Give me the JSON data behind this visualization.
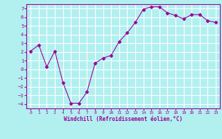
{
  "x": [
    0,
    1,
    2,
    3,
    4,
    5,
    6,
    7,
    8,
    9,
    10,
    11,
    12,
    13,
    14,
    15,
    16,
    17,
    18,
    19,
    20,
    21,
    22,
    23
  ],
  "y": [
    2.1,
    2.8,
    0.3,
    2.1,
    -1.5,
    -3.9,
    -3.9,
    -2.6,
    0.7,
    1.3,
    1.6,
    3.2,
    4.2,
    5.4,
    6.9,
    7.2,
    7.2,
    6.5,
    6.2,
    5.8,
    6.3,
    6.3,
    5.6,
    5.4
  ],
  "xlabel": "Windchill (Refroidissement éolien,°C)",
  "ylim": [
    -4.5,
    7.5
  ],
  "xlim": [
    -0.5,
    23.5
  ],
  "yticks": [
    -4,
    -3,
    -2,
    -1,
    0,
    1,
    2,
    3,
    4,
    5,
    6,
    7
  ],
  "xticks": [
    0,
    1,
    2,
    3,
    4,
    5,
    6,
    7,
    8,
    9,
    10,
    11,
    12,
    13,
    14,
    15,
    16,
    17,
    18,
    19,
    20,
    21,
    22,
    23
  ],
  "line_color": "#990099",
  "marker": "D",
  "bg_color": "#b2f0f0",
  "grid_color": "#ffffff",
  "text_color": "#990099"
}
